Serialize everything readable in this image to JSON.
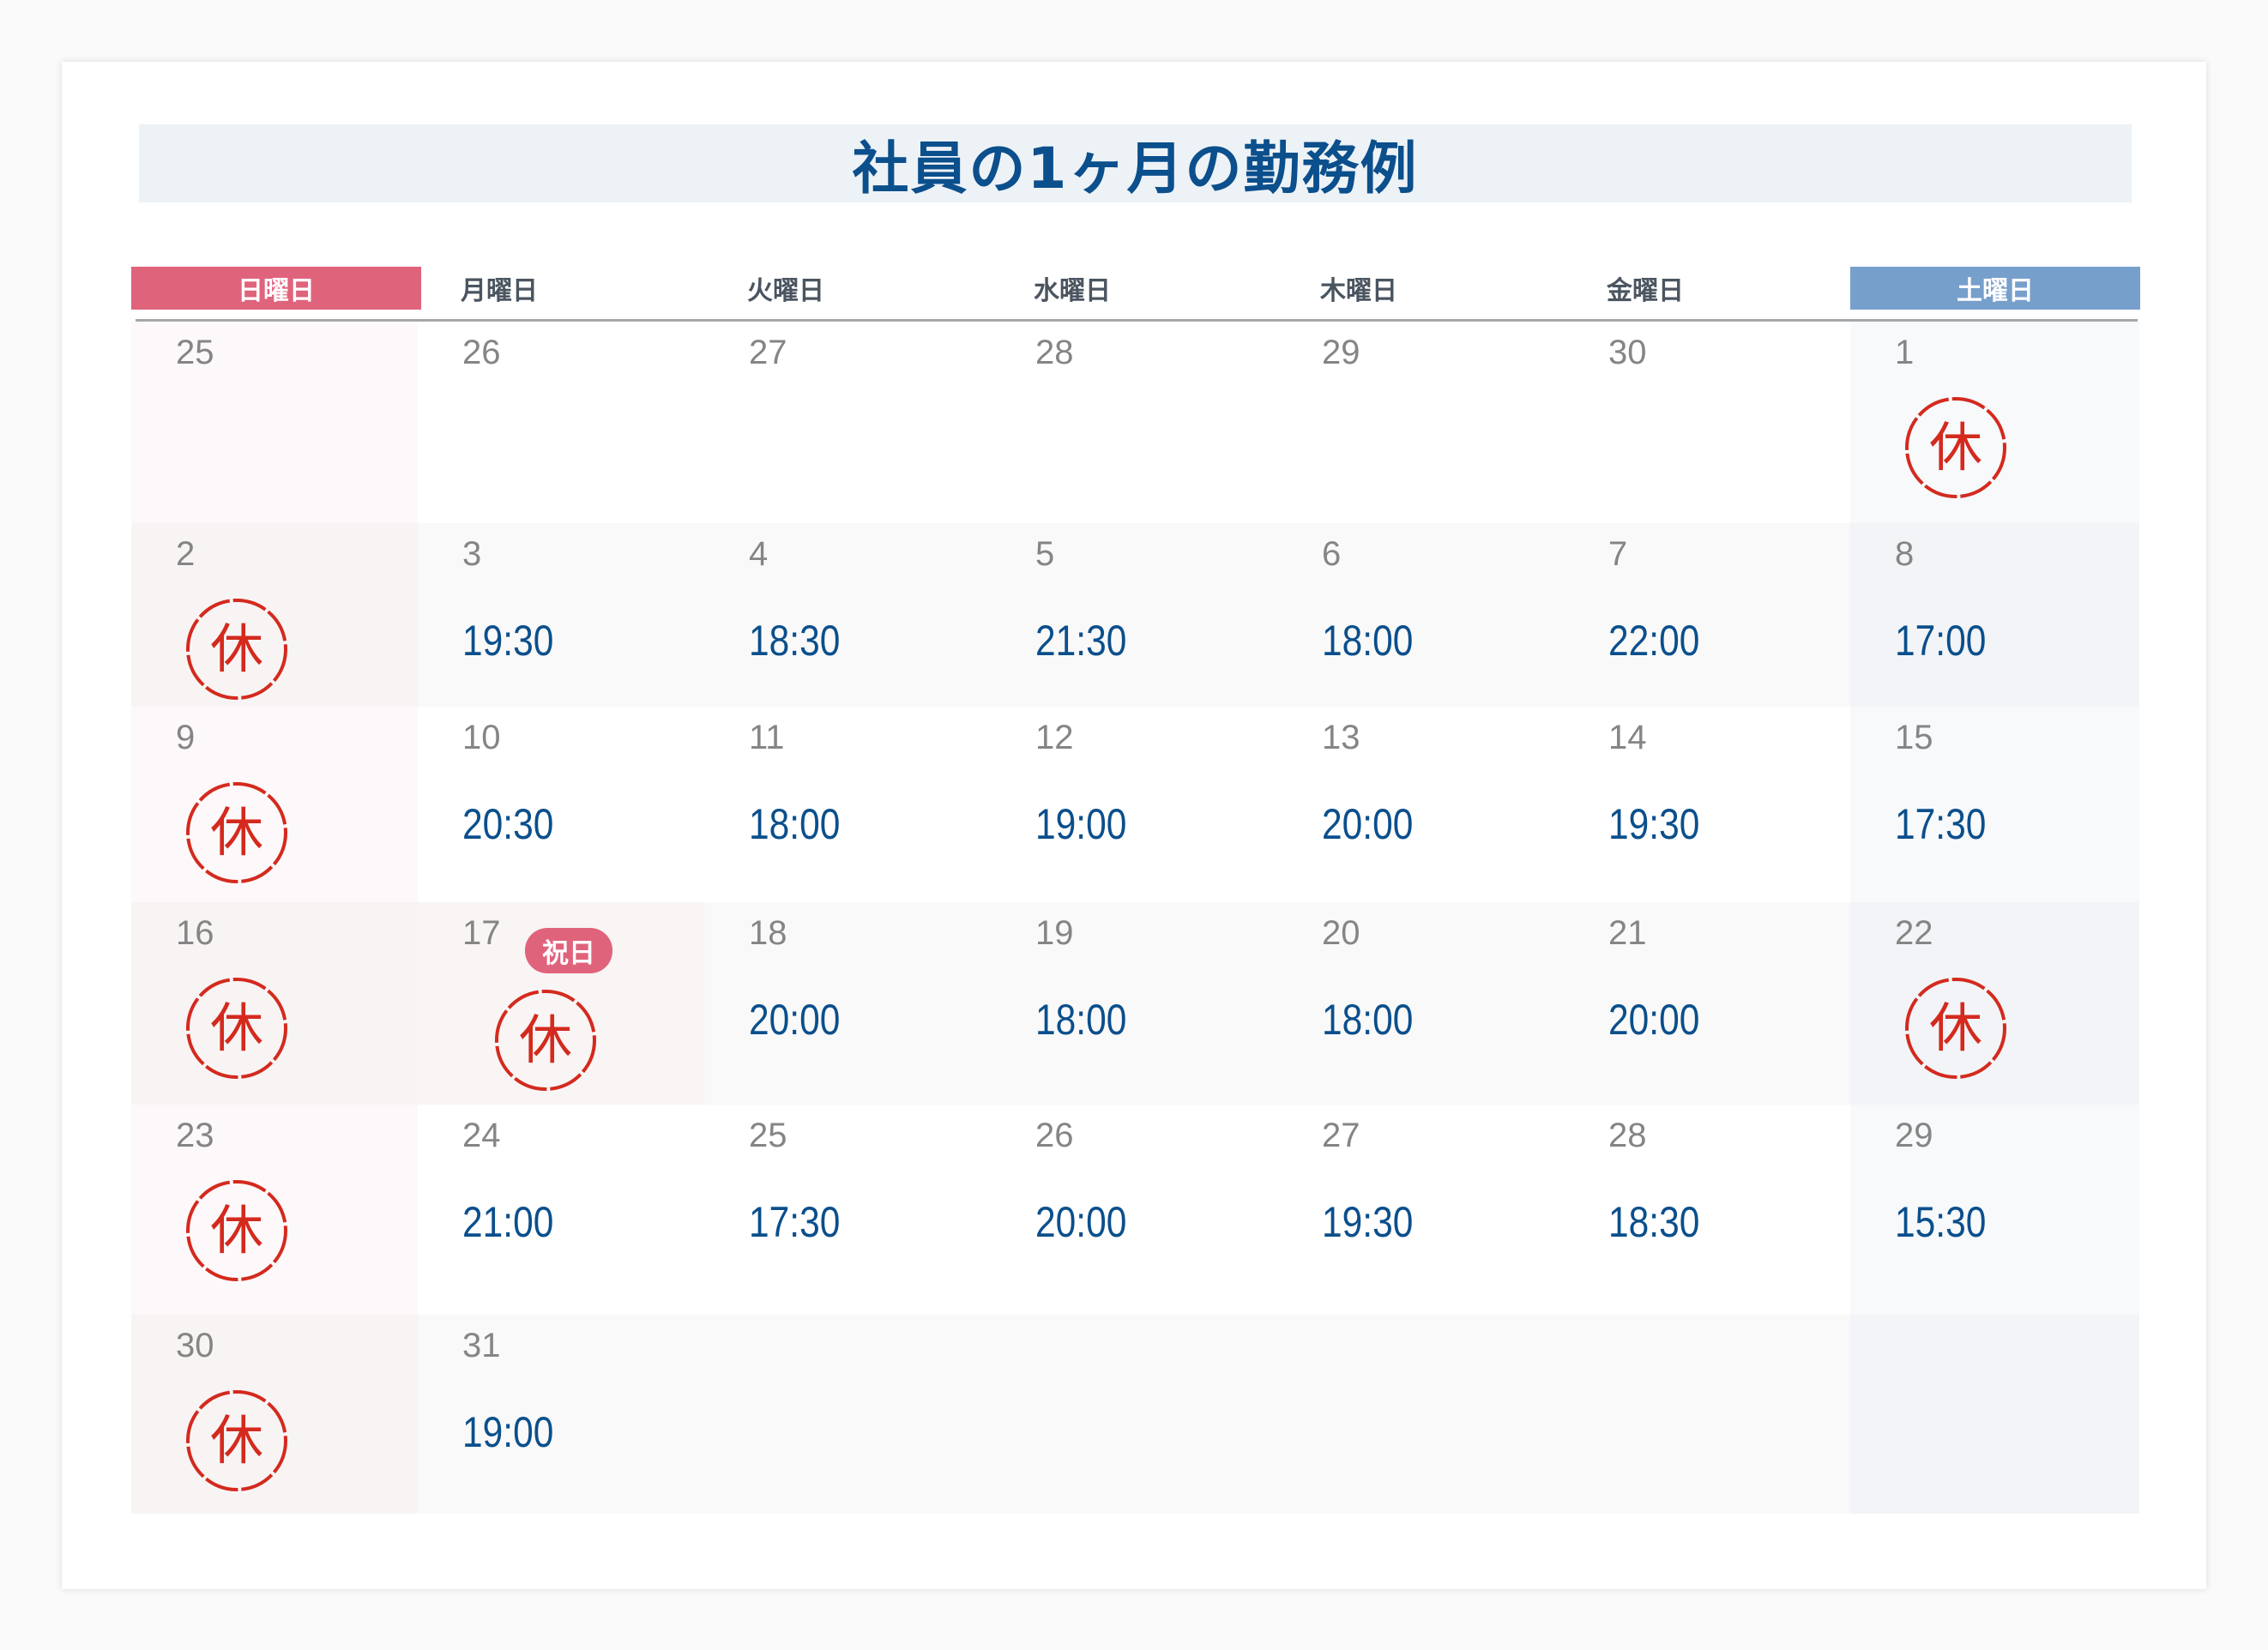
{
  "title": "社員の1ヶ月の勤務例",
  "weekdays": [
    "日曜日",
    "月曜日",
    "火曜日",
    "水曜日",
    "木曜日",
    "金曜日",
    "土曜日"
  ],
  "colors": {
    "sunday": "#e0637c",
    "saturday": "#779fcc",
    "time": "#0b4f8c",
    "stamp": "#d42a1e",
    "title": "#0b4f8c"
  },
  "stamp_text": "休",
  "holiday_label": "祝日",
  "weeks": [
    [
      {
        "day": "25"
      },
      {
        "day": "26"
      },
      {
        "day": "27"
      },
      {
        "day": "28"
      },
      {
        "day": "29"
      },
      {
        "day": "30"
      },
      {
        "day": "1",
        "off": true
      }
    ],
    [
      {
        "day": "2",
        "off": true
      },
      {
        "day": "3",
        "time": "19:30"
      },
      {
        "day": "4",
        "time": "18:30"
      },
      {
        "day": "5",
        "time": "21:30"
      },
      {
        "day": "6",
        "time": "18:00"
      },
      {
        "day": "7",
        "time": "22:00"
      },
      {
        "day": "8",
        "time": "17:00"
      }
    ],
    [
      {
        "day": "9",
        "off": true
      },
      {
        "day": "10",
        "time": "20:30"
      },
      {
        "day": "11",
        "time": "18:00"
      },
      {
        "day": "12",
        "time": "19:00"
      },
      {
        "day": "13",
        "time": "20:00"
      },
      {
        "day": "14",
        "time": "19:30"
      },
      {
        "day": "15",
        "time": "17:30"
      }
    ],
    [
      {
        "day": "16",
        "off": true
      },
      {
        "day": "17",
        "off": true,
        "holiday": true
      },
      {
        "day": "18",
        "time": "20:00"
      },
      {
        "day": "19",
        "time": "18:00"
      },
      {
        "day": "20",
        "time": "18:00"
      },
      {
        "day": "21",
        "time": "20:00"
      },
      {
        "day": "22",
        "off": true
      }
    ],
    [
      {
        "day": "23",
        "off": true
      },
      {
        "day": "24",
        "time": "21:00"
      },
      {
        "day": "25",
        "time": "17:30"
      },
      {
        "day": "26",
        "time": "20:00"
      },
      {
        "day": "27",
        "time": "19:30"
      },
      {
        "day": "28",
        "time": "18:30"
      },
      {
        "day": "29",
        "time": "15:30"
      }
    ],
    [
      {
        "day": "30",
        "off": true
      },
      {
        "day": "31",
        "time": "19:00"
      },
      {},
      {},
      {},
      {},
      {}
    ]
  ]
}
